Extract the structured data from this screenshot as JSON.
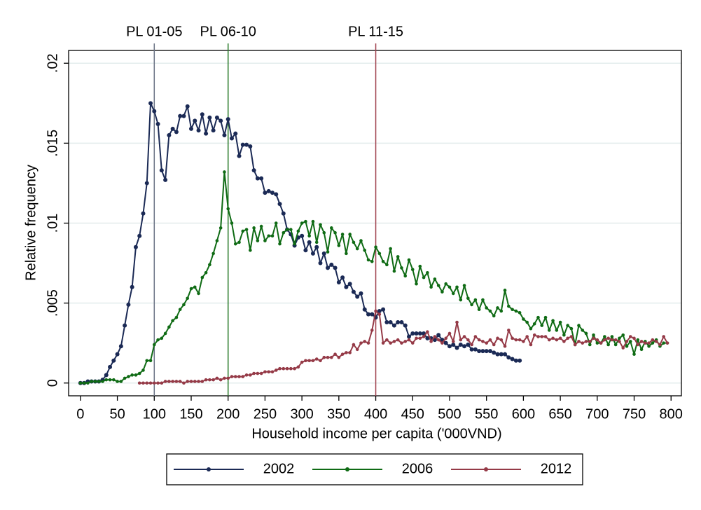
{
  "chart_data": {
    "type": "line",
    "xlabel": "Household income per capita ('000VND)",
    "ylabel": "Relative frequency",
    "xlim": [
      -16,
      814
    ],
    "ylim": [
      -0.0008,
      0.0208
    ],
    "xticks": [
      0,
      50,
      100,
      150,
      200,
      250,
      300,
      350,
      400,
      450,
      500,
      550,
      600,
      650,
      700,
      750,
      800
    ],
    "yticks": [
      0,
      {
        "value": 0.005,
        "label": ".005"
      },
      {
        "value": 0.01,
        "label": ".01"
      },
      {
        "value": 0.015,
        "label": ".015"
      },
      {
        "value": 0.02,
        "label": ".02"
      }
    ],
    "grid": true,
    "legend": "bottom",
    "ref_lines": [
      {
        "value": 100,
        "label": "PL 01-05",
        "color": "#6b7385"
      },
      {
        "value": 200,
        "label": "PL 06-10",
        "color": "#2a7a2a"
      },
      {
        "value": 400,
        "label": "PL 11-15",
        "color": "#a0434f"
      }
    ],
    "x": [
      0,
      5,
      10,
      15,
      20,
      25,
      30,
      35,
      40,
      45,
      50,
      55,
      60,
      65,
      70,
      75,
      80,
      85,
      90,
      95,
      100,
      105,
      110,
      115,
      120,
      125,
      130,
      135,
      140,
      145,
      150,
      155,
      160,
      165,
      170,
      175,
      180,
      185,
      190,
      195,
      200,
      205,
      210,
      215,
      220,
      225,
      230,
      235,
      240,
      245,
      250,
      255,
      260,
      265,
      270,
      275,
      280,
      285,
      290,
      295,
      300,
      305,
      310,
      315,
      320,
      325,
      330,
      335,
      340,
      345,
      350,
      355,
      360,
      365,
      370,
      375,
      380,
      385,
      390,
      395,
      400,
      405,
      410,
      415,
      420,
      425,
      430,
      435,
      440,
      445,
      450,
      455,
      460,
      465,
      470,
      475,
      480,
      485,
      490,
      495,
      500,
      505,
      510,
      515,
      520,
      525,
      530,
      535,
      540,
      545,
      550,
      555,
      560,
      565,
      570,
      575,
      580,
      585,
      590,
      595,
      600,
      605,
      610,
      615,
      620,
      625,
      630,
      635,
      640,
      645,
      650,
      655,
      660,
      665,
      670,
      675,
      680,
      685,
      690,
      695,
      700,
      705,
      710,
      715,
      720,
      725,
      730,
      735,
      740,
      745,
      750,
      755,
      760,
      765,
      770,
      775,
      780,
      785,
      790,
      795
    ],
    "series": [
      {
        "name": "2002",
        "color": "#1b2a55",
        "values": [
          0,
          0,
          0.0001,
          0.0001,
          0.0001,
          0.0001,
          0.0002,
          0.0005,
          0.001,
          0.0014,
          0.0018,
          0.0023,
          0.0036,
          0.0049,
          0.006,
          0.0085,
          0.0092,
          0.0106,
          0.0125,
          0.0175,
          0.017,
          0.0162,
          0.0133,
          0.0127,
          0.0155,
          0.0159,
          0.0157,
          0.0167,
          0.0167,
          0.0173,
          0.0159,
          0.0164,
          0.0158,
          0.0168,
          0.0156,
          0.0166,
          0.0158,
          0.0166,
          0.0164,
          0.0155,
          0.0165,
          0.0153,
          0.0156,
          0.0142,
          0.0149,
          0.0149,
          0.0148,
          0.0133,
          0.0128,
          0.0128,
          0.0119,
          0.012,
          0.0119,
          0.0118,
          0.0112,
          0.0106,
          0.0096,
          0.0093,
          0.0086,
          0.0091,
          0.0092,
          0.0083,
          0.0088,
          0.0081,
          0.0085,
          0.0075,
          0.0081,
          0.0072,
          0.0074,
          0.0072,
          0.0063,
          0.0066,
          0.006,
          0.0062,
          0.0057,
          0.0054,
          0.0056,
          0.0046,
          0.0043,
          0.0043,
          0.0041,
          0.0045,
          0.0046,
          0.0038,
          0.0038,
          0.0036,
          0.0038,
          0.0038,
          0.0036,
          0.0029,
          0.0031,
          0.0031,
          0.0031,
          0.0031,
          0.0028,
          0.0028,
          0.0027,
          0.003,
          0.0027,
          0.0025,
          0.0023,
          0.0024,
          0.0022,
          0.0024,
          0.0023,
          0.0024,
          0.0021,
          0.0021,
          0.002,
          0.002,
          0.002,
          0.002,
          0.0019,
          0.0018,
          0.0018,
          0.0018,
          0.0016,
          0.0015,
          0.0014,
          0.0014,
          null,
          null,
          null,
          null,
          null,
          null,
          null,
          null,
          null,
          null,
          null,
          null,
          null,
          null,
          null,
          null,
          null,
          null,
          null,
          null,
          null,
          null,
          null,
          null,
          null,
          null,
          null,
          null,
          null,
          null,
          null,
          null,
          null,
          null,
          null,
          null,
          null,
          null,
          null,
          null
        ]
      },
      {
        "name": "2006",
        "color": "#0f6b14",
        "values": [
          0,
          0,
          0,
          0.0001,
          0.0001,
          0.0001,
          0.0001,
          0.0002,
          0.0002,
          0.0002,
          0.0001,
          0.0001,
          0.0003,
          0.0004,
          0.0005,
          0.0005,
          0.0006,
          0.0008,
          0.0014,
          0.0014,
          0.0024,
          0.0027,
          0.0028,
          0.0031,
          0.0035,
          0.0039,
          0.0041,
          0.0046,
          0.0049,
          0.0053,
          0.0059,
          0.006,
          0.0056,
          0.0066,
          0.0069,
          0.0074,
          0.0081,
          0.0089,
          0.0097,
          0.0132,
          0.0109,
          0.01,
          0.0087,
          0.0088,
          0.0095,
          0.0096,
          0.0083,
          0.0097,
          0.0089,
          0.0098,
          0.0089,
          0.0092,
          0.0092,
          0.01,
          0.0087,
          0.0094,
          0.0096,
          0.0096,
          0.0087,
          0.0095,
          0.01,
          0.0101,
          0.0092,
          0.0101,
          0.0088,
          0.0099,
          0.0094,
          0.0082,
          0.0097,
          0.0094,
          0.0086,
          0.0093,
          0.0081,
          0.0093,
          0.0088,
          0.0084,
          0.0089,
          0.0083,
          0.0077,
          0.0076,
          0.0085,
          0.0081,
          0.0076,
          0.0074,
          0.0084,
          0.007,
          0.0079,
          0.0072,
          0.0067,
          0.0077,
          0.0071,
          0.0062,
          0.0073,
          0.0066,
          0.0069,
          0.006,
          0.0065,
          0.0061,
          0.0057,
          0.0062,
          0.006,
          0.0056,
          0.006,
          0.0052,
          0.0061,
          0.0053,
          0.0049,
          0.0052,
          0.0046,
          0.0052,
          0.0047,
          0.0045,
          0.0042,
          0.0047,
          0.0045,
          0.0058,
          0.0048,
          0.0046,
          0.0045,
          0.0044,
          0.004,
          0.0038,
          0.0034,
          0.0037,
          0.0041,
          0.0036,
          0.0041,
          0.0033,
          0.0039,
          0.0033,
          0.0038,
          0.003,
          0.0036,
          0.0034,
          0.0024,
          0.0036,
          0.0033,
          0.0031,
          0.0024,
          0.003,
          0.0025,
          0.0025,
          0.0029,
          0.0024,
          0.0029,
          0.0024,
          0.0028,
          0.003,
          0.0023,
          0.0026,
          0.0018,
          0.0027,
          0.0021,
          0.0026,
          0.0023,
          0.0025,
          0.0027,
          0.0023,
          0.0025,
          0.0025
        ]
      },
      {
        "name": "2012",
        "color": "#953a47",
        "values": [
          null,
          null,
          null,
          null,
          null,
          null,
          null,
          null,
          null,
          null,
          null,
          null,
          null,
          null,
          null,
          null,
          0,
          0,
          0,
          0,
          0,
          0,
          0,
          0.0001,
          0.0001,
          0.0001,
          0.0001,
          0.0001,
          0,
          0.0001,
          0.0001,
          0.0001,
          0.0001,
          0.0001,
          0.0002,
          0.0002,
          0.0002,
          0.0003,
          0.0002,
          0.0003,
          0.0003,
          0.0004,
          0.0004,
          0.0004,
          0.0004,
          0.0005,
          0.0005,
          0.0006,
          0.0006,
          0.0006,
          0.0007,
          0.0007,
          0.0007,
          0.0008,
          0.0009,
          0.0009,
          0.0009,
          0.0009,
          0.0009,
          0.001,
          0.0013,
          0.0014,
          0.0014,
          0.0014,
          0.0015,
          0.0014,
          0.0016,
          0.0016,
          0.0016,
          0.0018,
          0.0016,
          0.0018,
          0.0019,
          0.0019,
          0.0024,
          0.0021,
          0.0025,
          0.0026,
          0.0025,
          0.0033,
          0.0045,
          0.0043,
          0.0025,
          0.0027,
          0.0025,
          0.0026,
          0.0027,
          0.0025,
          0.0026,
          0.0027,
          0.0025,
          0.0028,
          0.0028,
          0.0029,
          0.0032,
          0.0026,
          0.0029,
          0.0027,
          0.0025,
          0.0028,
          0.0031,
          0.0026,
          0.0038,
          0.0027,
          0.0029,
          0.0027,
          0.0024,
          0.0029,
          0.0027,
          0.0026,
          0.0025,
          0.0027,
          0.0024,
          0.0028,
          0.0027,
          0.0023,
          0.0033,
          0.0028,
          0.0027,
          0.0027,
          0.0026,
          0.0029,
          0.0024,
          0.003,
          0.0029,
          0.0029,
          0.0029,
          0.0027,
          0.0028,
          0.0027,
          0.0028,
          0.0026,
          0.0028,
          0.0029,
          0.0024,
          0.0026,
          0.0025,
          0.0026,
          0.0026,
          0.0028,
          0.0027,
          0.0025,
          0.0027,
          0.0028,
          0.0027,
          0.0027,
          0.0026,
          0.0022,
          0.0026,
          0.0029,
          0.0028,
          0.0024,
          0.0026,
          0.0025,
          0.0025,
          0.0027,
          0.0026,
          0.0024,
          0.0029,
          0.0025
        ]
      }
    ]
  }
}
